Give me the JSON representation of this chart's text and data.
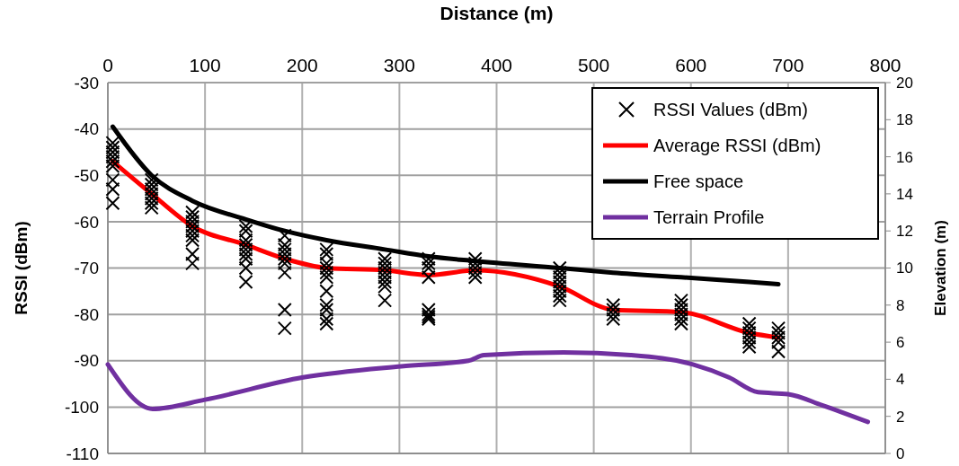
{
  "chart_data": {
    "type": "line",
    "xlabel": "Distance (m)",
    "ylabel": "RSSI (dBm)",
    "y2label": "Elevation (m)",
    "xlim": [
      0,
      800
    ],
    "xticks": [
      0,
      100,
      200,
      300,
      400,
      500,
      600,
      700,
      800
    ],
    "ylim": [
      -110,
      -30
    ],
    "yticks": [
      -110,
      -100,
      -90,
      -80,
      -70,
      -60,
      -50,
      -40,
      -30
    ],
    "y2lim": [
      0,
      20
    ],
    "y2ticks": [
      0,
      2,
      4,
      6,
      8,
      10,
      12,
      14,
      16,
      18,
      20
    ],
    "grid": true,
    "legend": "top right",
    "series": [
      {
        "name": "RSSI Values (dBm)",
        "type": "scatter",
        "marker": "cross",
        "color": "#000000",
        "x": [
          5,
          5,
          5,
          5,
          5,
          5,
          5,
          5,
          5,
          45,
          45,
          45,
          45,
          45,
          45,
          45,
          87,
          87,
          87,
          87,
          87,
          87,
          87,
          87,
          87,
          142,
          142,
          142,
          142,
          142,
          142,
          142,
          142,
          142,
          182,
          182,
          182,
          182,
          182,
          182,
          182,
          182,
          182,
          225,
          225,
          225,
          225,
          225,
          225,
          225,
          225,
          225,
          225,
          225,
          285,
          285,
          285,
          285,
          285,
          285,
          285,
          285,
          330,
          330,
          330,
          330,
          330,
          330,
          330,
          330,
          378,
          378,
          378,
          378,
          378,
          465,
          465,
          465,
          465,
          465,
          465,
          465,
          465,
          520,
          520,
          520,
          520,
          590,
          590,
          590,
          590,
          590,
          590,
          660,
          660,
          660,
          660,
          660,
          660,
          690,
          690,
          690,
          690,
          690
        ],
        "values": [
          -43,
          -44,
          -45,
          -46,
          -47,
          -48,
          -51,
          -53,
          -56,
          -51,
          -52,
          -53,
          -54,
          -55,
          -56,
          -57,
          -58,
          -59,
          -60,
          -61,
          -62,
          -63,
          -64,
          -67,
          -69,
          -61,
          -62,
          -64,
          -65,
          -66,
          -67,
          -68,
          -70,
          -73,
          -63,
          -65,
          -66,
          -67,
          -68,
          -69,
          -71,
          -79,
          -83,
          -66,
          -67,
          -69,
          -70,
          -71,
          -72,
          -75,
          -78,
          -79,
          -81,
          -82,
          -68,
          -69,
          -70,
          -71,
          -72,
          -73,
          -74,
          -77,
          -68,
          -69,
          -70,
          -72,
          -79,
          -80,
          -81,
          -80.5,
          -68,
          -69,
          -70,
          -71,
          -72,
          -70,
          -71,
          -72,
          -73,
          -74,
          -75,
          -76,
          -77,
          -78,
          -79,
          -80,
          -81,
          -77,
          -78,
          -79,
          -80,
          -81,
          -82,
          -82,
          -83,
          -84,
          -85,
          -86,
          -87,
          -83,
          -84,
          -85,
          -86,
          -88
        ]
      },
      {
        "name": "Average RSSI (dBm)",
        "color": "#ff0000",
        "x": [
          5,
          45,
          87,
          142,
          182,
          225,
          285,
          330,
          378,
          465,
          520,
          590,
          660,
          690
        ],
        "values": [
          -47,
          -54,
          -61,
          -65,
          -68,
          -70,
          -70.5,
          -71.5,
          -70.5,
          -74,
          -79,
          -79.5,
          -84,
          -85
        ]
      },
      {
        "name": "Free space",
        "color": "#000000",
        "x": [
          5,
          45,
          87,
          142,
          182,
          225,
          285,
          330,
          378,
          465,
          520,
          590,
          660,
          690
        ],
        "values": [
          -39.5,
          -50,
          -55.5,
          -59.5,
          -62,
          -64,
          -66,
          -67.5,
          -68.5,
          -70,
          -71,
          -72,
          -73,
          -73.5
        ]
      },
      {
        "name": "Terrain Profile",
        "axis": "y2",
        "color": "#7030a0",
        "x": [
          0,
          46,
          100,
          201,
          302,
          371,
          387,
          469,
          538,
          602,
          639,
          669,
          700,
          735,
          782
        ],
        "values": [
          4.8,
          2.4,
          2.9,
          4.1,
          4.7,
          5.0,
          5.3,
          5.45,
          5.3,
          4.8,
          4.1,
          3.3,
          3.2,
          2.6,
          1.7
        ]
      }
    ]
  }
}
